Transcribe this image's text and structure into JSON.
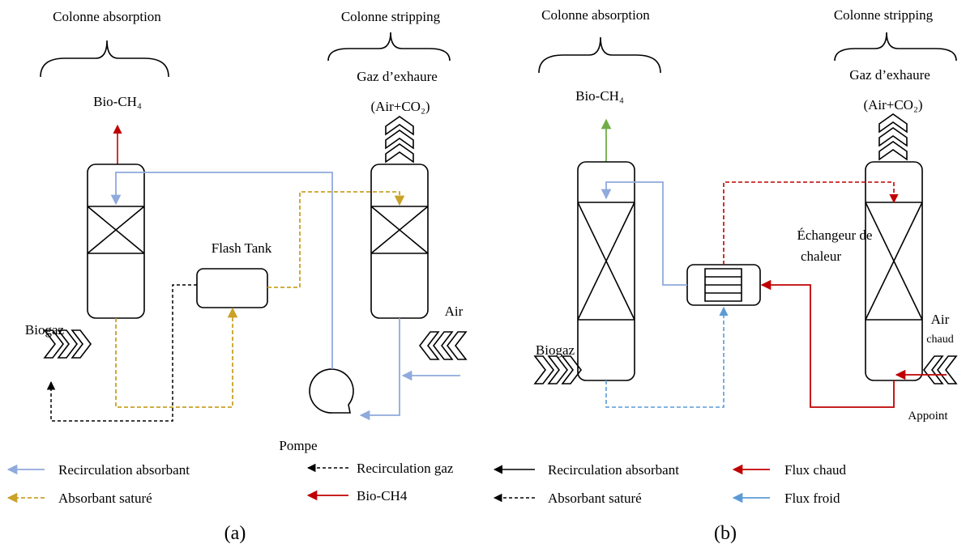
{
  "panel_a": {
    "absorption_title": "Colonne absorption",
    "stripping_title": "Colonne stripping",
    "bio_ch4": "Bio-CH₄",
    "exhaust": "Gaz d’exhaure",
    "exhaust_composition": "(Air+CO₂)",
    "flash_tank": "Flash Tank",
    "biogaz": "Biogaz",
    "air": "Air",
    "pump": "Pompe",
    "caption": "(a)"
  },
  "panel_b": {
    "absorption_title": "Colonne absorption",
    "stripping_title": "Colonne stripping",
    "bio_ch4": "Bio-CH₄",
    "exhaust": "Gaz d’exhaure",
    "exhaust_composition": "(Air+CO₂)",
    "exchanger_line1": "Échangeur de",
    "exchanger_line2": "chaleur",
    "biogaz": "Biogaz",
    "air": "Air",
    "air_qualifier": "chaud",
    "makeup": "Appoint",
    "caption": "(b)"
  },
  "legend": {
    "items": [
      "Recirculation absorbant",
      "Absorbant saturé",
      "Recirculation gaz",
      "Bio-CH4",
      "Recirculation absorbant",
      "Absorbant saturé",
      "Flux chaud",
      "Flux froid"
    ]
  }
}
